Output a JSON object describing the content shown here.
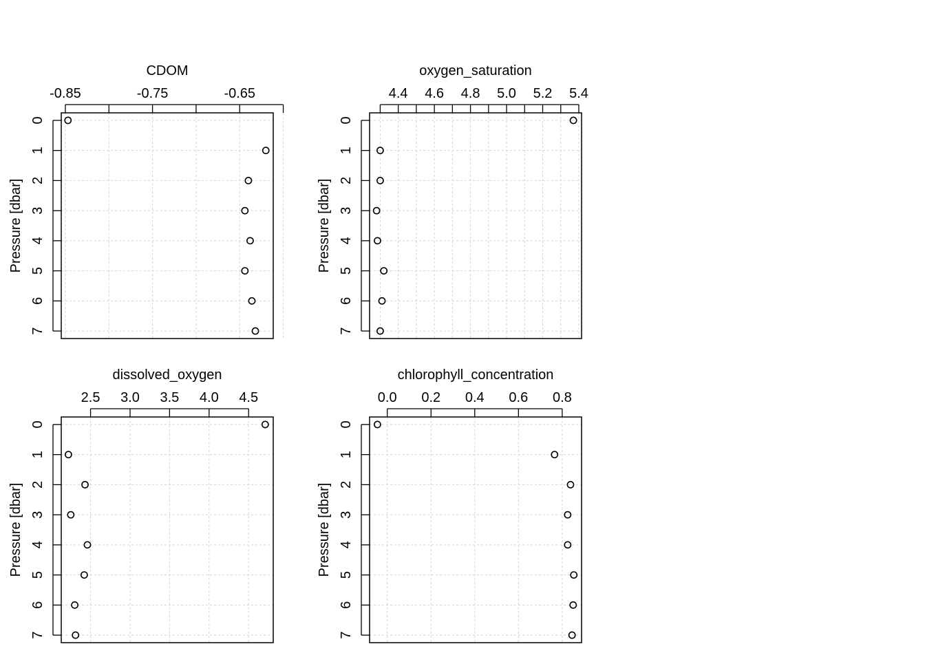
{
  "figure": {
    "background": "#ffffff",
    "grid_color": "#d3d3d3",
    "point_color": "#000000"
  },
  "chart_data": [
    {
      "type": "scatter",
      "title": "CDOM",
      "xlabel": "",
      "ylabel": "Pressure [dbar]",
      "xlim": [
        -0.8547,
        -0.6115
      ],
      "ylim": [
        7.25,
        -0.25
      ],
      "y_inverted": true,
      "x_ticks": [
        -0.85,
        -0.8,
        -0.75,
        -0.7,
        -0.65,
        -0.6
      ],
      "x_tick_labels": [
        "-0.85",
        "",
        "-0.75",
        "",
        "-0.65",
        ""
      ],
      "y_ticks": [
        0,
        1,
        2,
        3,
        4,
        5,
        6,
        7
      ],
      "y_tick_labels": [
        "0",
        "1",
        "2",
        "3",
        "4",
        "5",
        "6",
        "7"
      ],
      "grid": true,
      "series": [
        {
          "x": [
            -0.847,
            -0.62,
            -0.64,
            -0.644,
            -0.638,
            -0.644,
            -0.636,
            -0.632
          ],
          "y": [
            0,
            1,
            2,
            3,
            4,
            5,
            6,
            7
          ]
        }
      ]
    },
    {
      "type": "scatter",
      "title": "oxygen_saturation",
      "xlabel": "",
      "ylabel": "Pressure [dbar]",
      "xlim": [
        4.2413,
        5.4153
      ],
      "ylim": [
        7.25,
        -0.25
      ],
      "y_inverted": true,
      "x_ticks": [
        4.3,
        4.4,
        4.5,
        4.6,
        4.7,
        4.8,
        4.9,
        5.0,
        5.1,
        5.2,
        5.3,
        5.4
      ],
      "x_tick_labels": [
        "",
        "4.4",
        "",
        "4.6",
        "",
        "4.8",
        "",
        "5.0",
        "",
        "5.2",
        "",
        "5.4"
      ],
      "y_ticks": [
        0,
        1,
        2,
        3,
        4,
        5,
        6,
        7
      ],
      "y_tick_labels": [
        "0",
        "1",
        "2",
        "3",
        "4",
        "5",
        "6",
        "7"
      ],
      "grid": true,
      "series": [
        {
          "x": [
            5.37,
            4.3,
            4.3,
            4.28,
            4.285,
            4.32,
            4.31,
            4.3
          ],
          "y": [
            0,
            1,
            2,
            3,
            4,
            5,
            6,
            7
          ]
        }
      ]
    },
    {
      "type": "scatter",
      "title": "dissolved_oxygen",
      "xlabel": "",
      "ylabel": "Pressure [dbar]",
      "xlim": [
        2.1294,
        4.8115
      ],
      "ylim": [
        7.25,
        -0.25
      ],
      "y_inverted": true,
      "x_ticks": [
        2.5,
        3.0,
        3.5,
        4.0,
        4.5
      ],
      "x_tick_labels": [
        "2.5",
        "3.0",
        "3.5",
        "4.0",
        "4.5"
      ],
      "y_ticks": [
        0,
        1,
        2,
        3,
        4,
        5,
        6,
        7
      ],
      "y_tick_labels": [
        "0",
        "1",
        "2",
        "3",
        "4",
        "5",
        "6",
        "7"
      ],
      "grid": true,
      "series": [
        {
          "x": [
            4.71,
            2.22,
            2.43,
            2.25,
            2.46,
            2.42,
            2.3,
            2.31
          ],
          "y": [
            0,
            1,
            2,
            3,
            4,
            5,
            6,
            7
          ]
        }
      ]
    },
    {
      "type": "scatter",
      "title": "chlorophyll_concentration",
      "xlabel": "",
      "ylabel": "Pressure [dbar]",
      "xlim": [
        -0.0809,
        0.8885
      ],
      "ylim": [
        7.25,
        -0.25
      ],
      "y_inverted": true,
      "x_ticks": [
        0.0,
        0.2,
        0.4,
        0.6,
        0.8
      ],
      "x_tick_labels": [
        "0.0",
        "0.2",
        "0.4",
        "0.6",
        "0.8"
      ],
      "y_ticks": [
        0,
        1,
        2,
        3,
        4,
        5,
        6,
        7
      ],
      "y_tick_labels": [
        "0",
        "1",
        "2",
        "3",
        "4",
        "5",
        "6",
        "7"
      ],
      "grid": true,
      "series": [
        {
          "x": [
            -0.045,
            0.765,
            0.838,
            0.825,
            0.825,
            0.853,
            0.85,
            0.845
          ],
          "y": [
            0,
            1,
            2,
            3,
            4,
            5,
            6,
            7
          ]
        }
      ]
    }
  ]
}
